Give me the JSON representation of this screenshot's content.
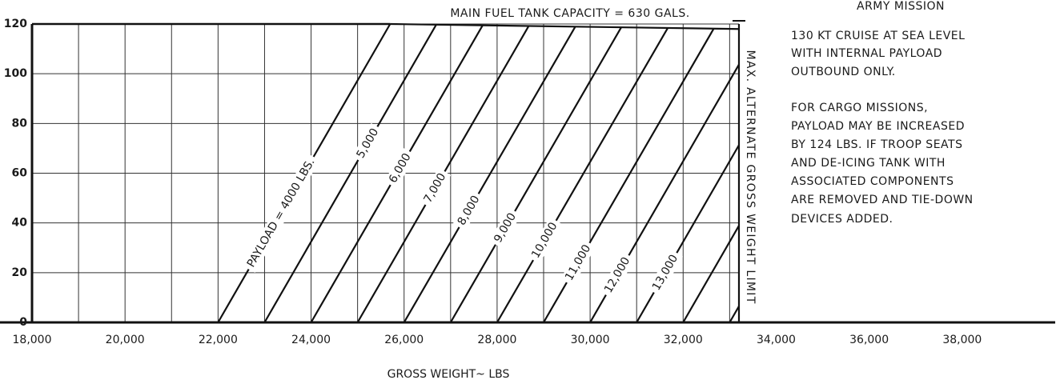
{
  "chart_data": {
    "type": "line",
    "xlabel": "GROSS WEIGHT~ LBS",
    "xlim": [
      18000,
      40000
    ],
    "ylim": [
      0,
      120
    ],
    "yticks": [
      0,
      20,
      40,
      60,
      80,
      100,
      120
    ],
    "xticks": [
      {
        "value": 18000,
        "label": "18,000"
      },
      {
        "value": 20000,
        "label": "20,000"
      },
      {
        "value": 22000,
        "label": "22,000"
      },
      {
        "value": 24000,
        "label": "24,000"
      },
      {
        "value": 26000,
        "label": "26,000"
      },
      {
        "value": 28000,
        "label": "28,000"
      },
      {
        "value": 30000,
        "label": "30,000"
      },
      {
        "value": 32000,
        "label": "32,000"
      },
      {
        "value": 34000,
        "label": "34,000"
      },
      {
        "value": 36000,
        "label": "36,000"
      },
      {
        "value": 38000,
        "label": "38,000"
      }
    ],
    "xgrid": [
      18000,
      19000,
      20000,
      21000,
      22000,
      23000,
      24000,
      25000,
      26000,
      27000,
      28000,
      29000,
      30000,
      31000,
      32000,
      33000
    ],
    "grid": true,
    "color": "#111111",
    "series": [
      {
        "name": "PAYLOAD = 4000 LBS.",
        "x": [
          22000,
          25700
        ],
        "values": [
          0,
          120
        ]
      },
      {
        "name": "5,000",
        "x": [
          23000,
          26690
        ],
        "values": [
          0,
          119.7
        ]
      },
      {
        "name": "6,000",
        "x": [
          24000,
          27690
        ],
        "values": [
          0,
          119.5
        ]
      },
      {
        "name": "7,000",
        "x": [
          25000,
          28680
        ],
        "values": [
          0,
          119.2
        ]
      },
      {
        "name": "8,000",
        "x": [
          26000,
          29680
        ],
        "values": [
          0,
          118.9
        ]
      },
      {
        "name": "9,000",
        "x": [
          27000,
          30670
        ],
        "values": [
          0,
          118.7
        ]
      },
      {
        "name": "10,000",
        "x": [
          28000,
          31670
        ],
        "values": [
          0,
          118.4
        ]
      },
      {
        "name": "11,000",
        "x": [
          29000,
          32660
        ],
        "values": [
          0,
          118.2
        ]
      },
      {
        "name": "12,000",
        "x": [
          30000,
          33200
        ],
        "values": [
          0,
          103.7
        ]
      },
      {
        "name": "13,000",
        "x": [
          31000,
          33200
        ],
        "values": [
          0,
          71.3
        ]
      },
      {
        "name": null,
        "x": [
          32000,
          33200
        ],
        "values": [
          0,
          38.9
        ]
      },
      {
        "name": null,
        "x": [
          33000,
          33200
        ],
        "values": [
          0,
          6.5
        ]
      }
    ],
    "fuel_line": {
      "label": "MAIN FUEL TANK CAPACITY = 630 GALS.",
      "x": [
        25700,
        33200
      ],
      "values": [
        120,
        118
      ]
    },
    "limit_line": {
      "label": "MAX. ALTERNATE GROSS WEIGHT LIMIT",
      "x": [
        33200,
        33200
      ],
      "values": [
        0,
        120
      ]
    },
    "notes_title": "ARMY MISSION",
    "notes": [
      "130 KT CRUISE AT SEA LEVEL",
      "WITH INTERNAL PAYLOAD",
      "OUTBOUND ONLY.",
      "FOR CARGO MISSIONS,",
      "PAYLOAD MAY BE INCREASED",
      "BY 124 LBS. IF TROOP SEATS",
      "AND DE-ICING TANK WITH",
      "ASSOCIATED COMPONENTS",
      "ARE REMOVED AND TIE-DOWN",
      "DEVICES ADDED."
    ]
  }
}
